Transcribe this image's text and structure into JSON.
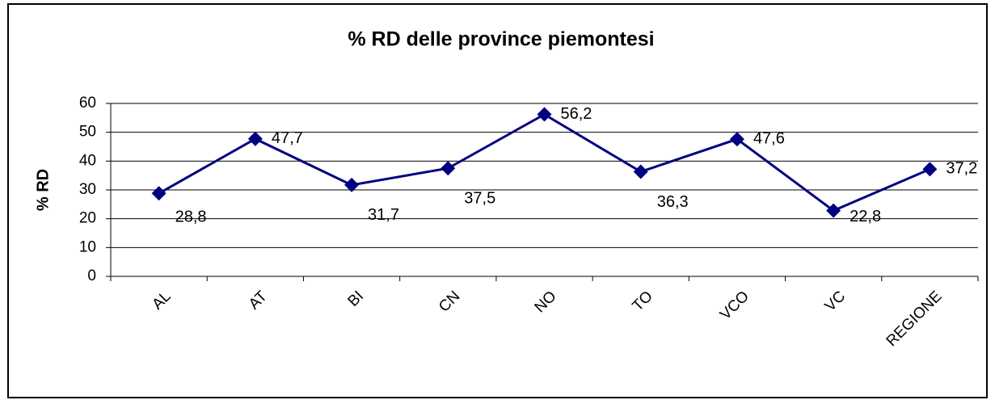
{
  "chart_data": {
    "type": "line",
    "title": "% RD delle province piemontesi",
    "y_label": "% RD",
    "categories": [
      "AL",
      "AT",
      "BI",
      "CN",
      "NO",
      "TO",
      "VCO",
      "VC",
      "REGIONE"
    ],
    "series": [
      {
        "name": "% RD",
        "color": "#000080",
        "values": [
          28.8,
          47.7,
          31.7,
          37.5,
          56.2,
          36.3,
          47.6,
          22.8,
          37.2
        ],
        "value_labels": [
          "28,8",
          "47,7",
          "31,7",
          "37,5",
          "56,2",
          "36,3",
          "47,6",
          "22,8",
          "37,2"
        ]
      }
    ],
    "ylim": [
      0,
      60
    ],
    "yticks": [
      0,
      10,
      20,
      30,
      40,
      50,
      60
    ],
    "grid": true,
    "legend": false
  }
}
